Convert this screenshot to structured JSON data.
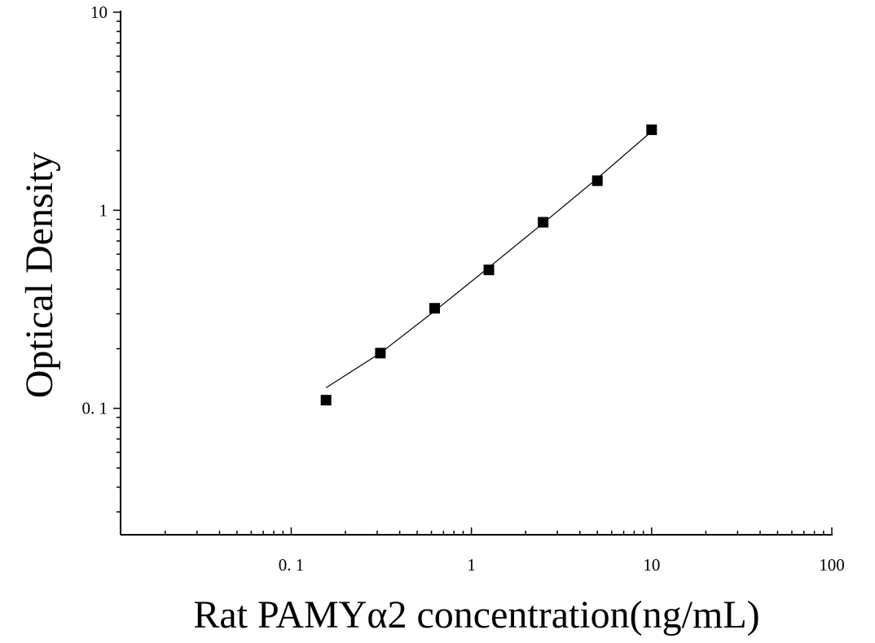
{
  "chart_data": {
    "type": "scatter",
    "xlabel": "Rat PAMYα2 concentration(ng/mL)",
    "ylabel": "Optical Density",
    "x_scale": "log",
    "y_scale": "log",
    "xlim": [
      0.0113,
      100
    ],
    "ylim": [
      0.023,
      10
    ],
    "x_ticks": [
      {
        "value": 0.1,
        "label": "0. 1"
      },
      {
        "value": 1,
        "label": "1"
      },
      {
        "value": 10,
        "label": "10"
      },
      {
        "value": 100,
        "label": "100"
      }
    ],
    "y_ticks": [
      {
        "value": 0.1,
        "label": "0. 1"
      },
      {
        "value": 1,
        "label": "1"
      },
      {
        "value": 10,
        "label": "10"
      }
    ],
    "grid": false,
    "legend": "none",
    "colors": {
      "marker": "#000000",
      "curve": "#000000",
      "axis": "#000000"
    },
    "series": [
      {
        "marker": "square",
        "points": [
          {
            "x": 0.156,
            "y": 0.11
          },
          {
            "x": 0.3125,
            "y": 0.19
          },
          {
            "x": 0.625,
            "y": 0.32
          },
          {
            "x": 1.25,
            "y": 0.5
          },
          {
            "x": 2.5,
            "y": 0.87
          },
          {
            "x": 5,
            "y": 1.41
          },
          {
            "x": 10,
            "y": 2.55
          }
        ]
      }
    ],
    "fit_curve": [
      {
        "x": 0.156,
        "y": 0.127
      },
      {
        "x": 0.3125,
        "y": 0.19
      },
      {
        "x": 0.625,
        "y": 0.31
      },
      {
        "x": 1.25,
        "y": 0.515
      },
      {
        "x": 2.5,
        "y": 0.86
      },
      {
        "x": 5,
        "y": 1.45
      },
      {
        "x": 10,
        "y": 2.5
      }
    ]
  }
}
